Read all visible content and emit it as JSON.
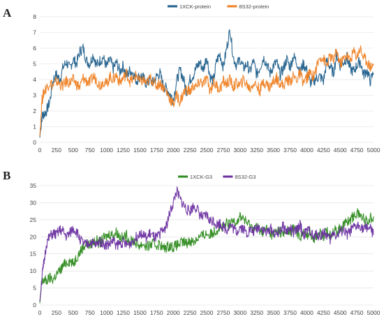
{
  "panels": [
    {
      "letter": "A"
    },
    {
      "letter": "B"
    }
  ],
  "chart_data": [
    {
      "type": "line",
      "panel": "A",
      "xlim": [
        0,
        5000
      ],
      "ylim": [
        0,
        8
      ],
      "x_ticks": [
        0,
        250,
        500,
        750,
        1000,
        1250,
        1500,
        1750,
        2000,
        2250,
        2500,
        2750,
        3000,
        3250,
        3500,
        3750,
        4000,
        4250,
        4500,
        4750,
        5000
      ],
      "y_ticks": [
        0,
        1,
        2,
        3,
        4,
        5,
        6,
        7,
        8
      ],
      "grid": true,
      "legend_position": "top-center",
      "series": [
        {
          "name": "1XCK-protein",
          "color": "#1f5f8b",
          "x": [
            0,
            30,
            60,
            100,
            150,
            200,
            250,
            300,
            350,
            400,
            450,
            500,
            550,
            600,
            650,
            700,
            750,
            800,
            850,
            900,
            950,
            1000,
            1050,
            1100,
            1150,
            1200,
            1250,
            1300,
            1350,
            1400,
            1450,
            1500,
            1550,
            1600,
            1650,
            1700,
            1750,
            1800,
            1850,
            1900,
            1950,
            2000,
            2050,
            2100,
            2150,
            2200,
            2250,
            2300,
            2350,
            2400,
            2450,
            2500,
            2550,
            2600,
            2650,
            2700,
            2750,
            2800,
            2850,
            2900,
            2950,
            3000,
            3050,
            3100,
            3150,
            3200,
            3250,
            3300,
            3350,
            3400,
            3450,
            3500,
            3550,
            3600,
            3650,
            3700,
            3750,
            3800,
            3850,
            3900,
            3950,
            4000,
            4050,
            4100,
            4150,
            4200,
            4250,
            4300,
            4350,
            4400,
            4450,
            4500,
            4550,
            4600,
            4650,
            4700,
            4750,
            4800,
            4850,
            4900,
            4950,
            5000
          ],
          "y": [
            0.3,
            1.6,
            1.8,
            2.0,
            2.6,
            4.0,
            4.3,
            4.0,
            4.8,
            5.1,
            4.7,
            5.3,
            5.0,
            5.8,
            6.0,
            5.2,
            5.0,
            5.6,
            4.9,
            5.2,
            5.4,
            4.8,
            5.3,
            4.7,
            5.1,
            4.5,
            4.9,
            4.2,
            4.6,
            4.4,
            3.9,
            4.3,
            4.1,
            3.7,
            4.0,
            3.8,
            4.2,
            4.4,
            3.6,
            3.4,
            3.1,
            2.7,
            3.9,
            4.6,
            4.1,
            3.2,
            4.0,
            4.3,
            4.8,
            5.1,
            4.6,
            5.5,
            4.2,
            3.9,
            5.2,
            5.6,
            4.8,
            6.0,
            7.2,
            5.4,
            4.9,
            5.3,
            4.7,
            5.0,
            4.5,
            5.2,
            4.3,
            4.8,
            5.4,
            5.0,
            4.4,
            4.9,
            5.1,
            4.3,
            4.7,
            5.3,
            4.8,
            5.5,
            5.1,
            4.5,
            5.0,
            4.6,
            3.8,
            3.9,
            4.1,
            4.2,
            3.9,
            5.2,
            4.8,
            4.4,
            5.6,
            4.9,
            5.1,
            5.4,
            4.7,
            4.5,
            4.9,
            5.2,
            4.3,
            4.6,
            3.9,
            4.4
          ]
        },
        {
          "name": "8S32-protein",
          "color": "#ee7f22",
          "x": [
            0,
            30,
            60,
            100,
            150,
            200,
            250,
            300,
            350,
            400,
            450,
            500,
            550,
            600,
            650,
            700,
            750,
            800,
            850,
            900,
            950,
            1000,
            1050,
            1100,
            1150,
            1200,
            1250,
            1300,
            1350,
            1400,
            1450,
            1500,
            1550,
            1600,
            1650,
            1700,
            1750,
            1800,
            1850,
            1900,
            1950,
            2000,
            2050,
            2100,
            2150,
            2200,
            2250,
            2300,
            2350,
            2400,
            2450,
            2500,
            2550,
            2600,
            2650,
            2700,
            2750,
            2800,
            2850,
            2900,
            2950,
            3000,
            3050,
            3100,
            3150,
            3200,
            3250,
            3300,
            3350,
            3400,
            3450,
            3500,
            3550,
            3600,
            3650,
            3700,
            3750,
            3800,
            3850,
            3900,
            3950,
            4000,
            4050,
            4100,
            4150,
            4200,
            4250,
            4300,
            4350,
            4400,
            4450,
            4500,
            4550,
            4600,
            4650,
            4700,
            4750,
            4800,
            4850,
            4900,
            4950,
            5000
          ],
          "y": [
            0.4,
            2.6,
            3.2,
            3.5,
            3.8,
            3.6,
            3.9,
            3.7,
            3.6,
            3.9,
            3.8,
            4.0,
            3.7,
            3.5,
            4.1,
            3.9,
            3.8,
            4.2,
            4.0,
            3.6,
            3.9,
            3.7,
            4.2,
            4.0,
            4.3,
            3.8,
            4.1,
            4.4,
            3.9,
            4.0,
            4.3,
            3.8,
            4.0,
            3.7,
            4.1,
            3.9,
            3.6,
            3.8,
            3.5,
            3.2,
            2.8,
            2.4,
            3.0,
            2.6,
            3.1,
            3.4,
            3.2,
            3.6,
            3.5,
            3.9,
            3.7,
            4.1,
            3.3,
            3.8,
            3.6,
            3.4,
            3.9,
            3.7,
            4.0,
            3.5,
            3.8,
            3.6,
            4.0,
            3.7,
            3.4,
            3.8,
            3.6,
            3.3,
            3.9,
            3.7,
            3.5,
            3.9,
            4.1,
            3.8,
            3.6,
            4.0,
            3.9,
            4.2,
            4.0,
            4.4,
            3.8,
            4.1,
            4.4,
            4.2,
            4.8,
            5.5,
            5.3,
            4.9,
            5.5,
            5.2,
            5.8,
            5.0,
            5.3,
            5.6,
            5.2,
            5.8,
            5.5,
            6.0,
            5.4,
            5.2,
            4.8,
            5.0
          ]
        }
      ]
    },
    {
      "type": "line",
      "panel": "B",
      "xlim": [
        0,
        5000
      ],
      "ylim": [
        0,
        35
      ],
      "x_ticks": [
        0,
        250,
        500,
        750,
        1000,
        1250,
        1500,
        1750,
        2000,
        2250,
        2500,
        2750,
        3000,
        3250,
        3500,
        3750,
        4000,
        4250,
        4500,
        4750,
        5000
      ],
      "y_ticks": [
        0,
        5,
        10,
        15,
        20,
        25,
        30,
        35
      ],
      "grid": true,
      "legend_position": "top-center",
      "series": [
        {
          "name": "1XCK-G3",
          "color": "#2e8b1f",
          "x": [
            0,
            30,
            60,
            100,
            150,
            200,
            250,
            300,
            350,
            400,
            450,
            500,
            550,
            600,
            650,
            700,
            750,
            800,
            850,
            900,
            950,
            1000,
            1050,
            1100,
            1150,
            1200,
            1250,
            1300,
            1350,
            1400,
            1450,
            1500,
            1550,
            1600,
            1650,
            1700,
            1750,
            1800,
            1850,
            1900,
            1950,
            2000,
            2050,
            2100,
            2150,
            2200,
            2250,
            2300,
            2350,
            2400,
            2450,
            2500,
            2550,
            2600,
            2650,
            2700,
            2750,
            2800,
            2850,
            2900,
            2950,
            3000,
            3050,
            3100,
            3150,
            3200,
            3250,
            3300,
            3350,
            3400,
            3450,
            3500,
            3550,
            3600,
            3650,
            3700,
            3750,
            3800,
            3850,
            3900,
            3950,
            4000,
            4050,
            4100,
            4150,
            4200,
            4250,
            4300,
            4350,
            4400,
            4450,
            4500,
            4550,
            4600,
            4650,
            4700,
            4750,
            4800,
            4850,
            4900,
            4950,
            5000
          ],
          "y": [
            0.5,
            6.0,
            7.5,
            7.0,
            8.0,
            7.5,
            9.0,
            10.0,
            11.5,
            12.5,
            13.0,
            12.0,
            14.0,
            15.5,
            17.0,
            18.0,
            17.5,
            18.5,
            19.0,
            18.0,
            19.5,
            20.0,
            21.0,
            20.5,
            21.5,
            20.0,
            19.5,
            20.5,
            18.5,
            19.0,
            18.0,
            17.5,
            18.0,
            17.0,
            17.5,
            18.0,
            17.5,
            18.0,
            16.5,
            17.0,
            17.5,
            17.0,
            17.5,
            18.0,
            18.5,
            18.0,
            19.0,
            18.5,
            19.5,
            20.0,
            20.5,
            21.0,
            20.5,
            21.5,
            22.0,
            23.0,
            22.5,
            24.0,
            23.5,
            25.0,
            24.5,
            26.0,
            25.5,
            24.0,
            23.5,
            22.5,
            23.0,
            22.0,
            21.5,
            22.5,
            21.0,
            20.5,
            22.0,
            21.5,
            20.5,
            22.0,
            21.0,
            22.5,
            21.5,
            20.0,
            21.0,
            20.5,
            21.5,
            19.5,
            20.5,
            21.0,
            20.0,
            21.5,
            20.5,
            22.0,
            21.5,
            22.5,
            23.5,
            24.5,
            25.0,
            26.0,
            27.0,
            26.5,
            25.5,
            24.5,
            25.5,
            26.0
          ]
        },
        {
          "name": "8S32-G3",
          "color": "#6a2fa0",
          "x": [
            0,
            30,
            60,
            100,
            150,
            200,
            250,
            300,
            350,
            400,
            450,
            500,
            550,
            600,
            650,
            700,
            750,
            800,
            850,
            900,
            950,
            1000,
            1050,
            1100,
            1150,
            1200,
            1250,
            1300,
            1350,
            1400,
            1450,
            1500,
            1550,
            1600,
            1650,
            1700,
            1750,
            1800,
            1850,
            1900,
            1950,
            2000,
            2050,
            2100,
            2150,
            2200,
            2250,
            2300,
            2350,
            2400,
            2450,
            2500,
            2550,
            2600,
            2650,
            2700,
            2750,
            2800,
            2850,
            2900,
            2950,
            3000,
            3050,
            3100,
            3150,
            3200,
            3250,
            3300,
            3350,
            3400,
            3450,
            3500,
            3550,
            3600,
            3650,
            3700,
            3750,
            3800,
            3850,
            3900,
            3950,
            4000,
            4050,
            4100,
            4150,
            4200,
            4250,
            4300,
            4350,
            4400,
            4450,
            4500,
            4550,
            4600,
            4650,
            4700,
            4750,
            4800,
            4850,
            4900,
            4950,
            5000
          ],
          "y": [
            1.0,
            8.0,
            12.0,
            18.0,
            20.0,
            21.0,
            20.5,
            22.0,
            21.5,
            20.0,
            21.0,
            22.5,
            21.5,
            19.5,
            18.0,
            17.5,
            18.5,
            18.0,
            17.5,
            19.0,
            18.0,
            17.5,
            18.0,
            19.0,
            17.5,
            18.0,
            18.5,
            17.5,
            18.0,
            19.0,
            20.0,
            21.5,
            20.5,
            19.5,
            21.0,
            20.0,
            19.5,
            21.0,
            22.0,
            23.5,
            27.0,
            30.0,
            33.5,
            31.0,
            29.5,
            28.0,
            27.5,
            29.0,
            28.5,
            26.5,
            25.5,
            26.5,
            24.5,
            25.0,
            23.5,
            24.0,
            23.0,
            22.0,
            23.5,
            22.5,
            21.5,
            23.0,
            22.5,
            21.0,
            22.0,
            21.5,
            22.5,
            23.0,
            22.0,
            21.0,
            22.5,
            21.5,
            20.5,
            22.0,
            23.0,
            21.5,
            22.5,
            21.0,
            22.0,
            23.5,
            20.5,
            21.5,
            22.0,
            19.5,
            21.0,
            20.0,
            21.5,
            20.5,
            19.0,
            21.5,
            20.0,
            21.5,
            22.0,
            20.5,
            21.5,
            22.5,
            23.0,
            23.5,
            22.0,
            23.0,
            22.5,
            20.5
          ]
        }
      ]
    }
  ]
}
